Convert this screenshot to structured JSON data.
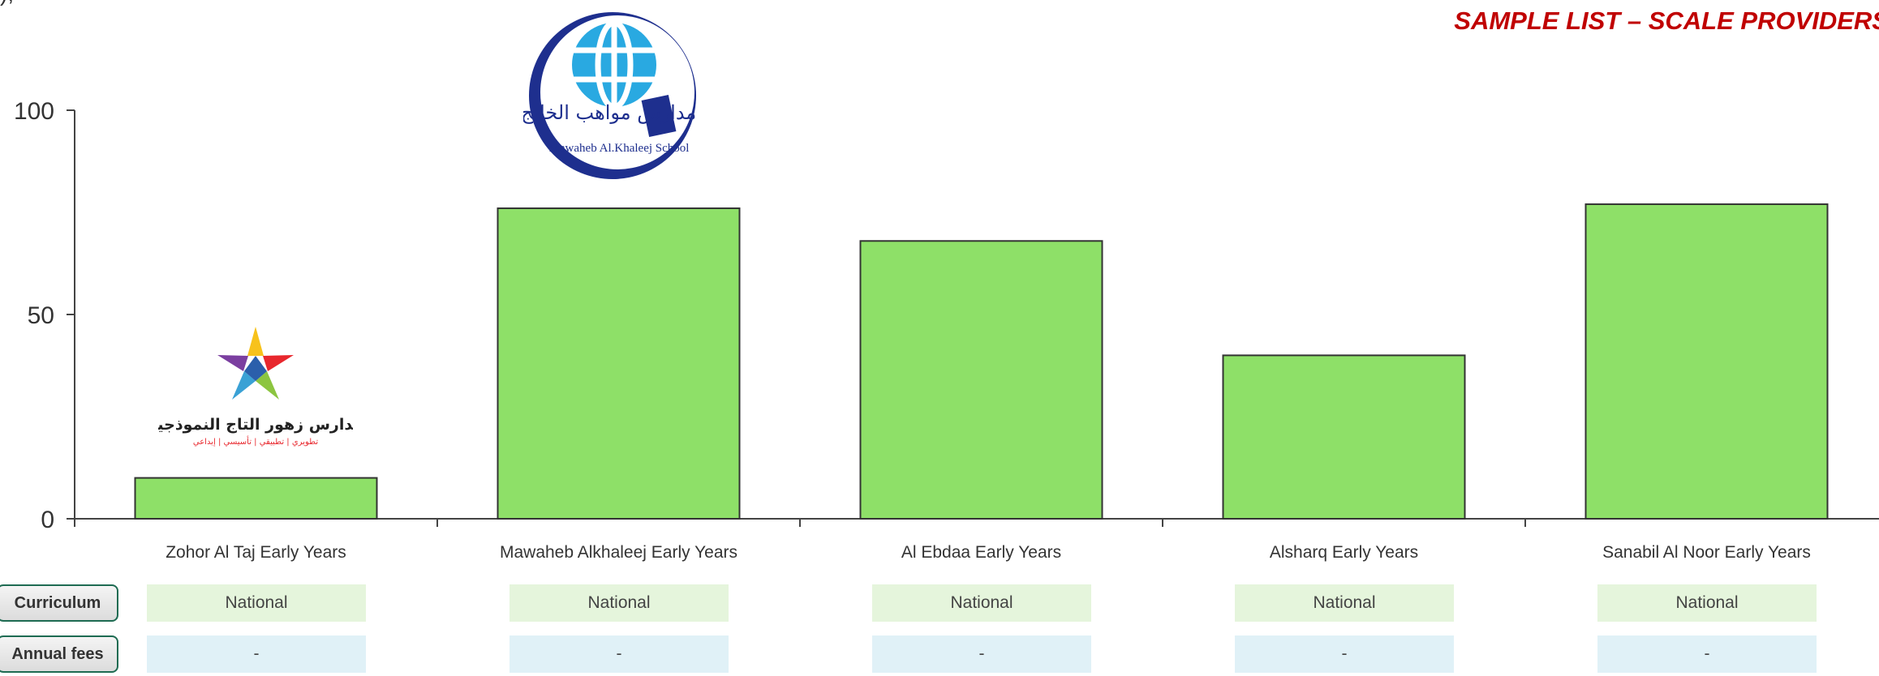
{
  "header": {
    "title": "SAMPLE LIST – SCALE PROVIDERS",
    "clipped_text": "),"
  },
  "logos": [
    {
      "name": "Zohor Al Taj logo",
      "arabic_name": "مدارس زهور التاج النموذجية",
      "arabic_sub": "تطويري | تطبيقي | تأسيسي | إبداعي",
      "colors": [
        "#7b3fa0",
        "#f7c21c",
        "#e8272d",
        "#3aa1d5",
        "#8cc540",
        "#2b5fab"
      ]
    },
    {
      "name": "Mawaheb Al Khaleej logo",
      "arabic_name": "مدارس مواهب الخليج",
      "english_name": "Mawaheb Al.Khaleej School",
      "colors": [
        "#1e2f8e",
        "#29a9e1"
      ]
    }
  ],
  "chart_data": {
    "type": "bar",
    "categories": [
      "Zohor Al Taj Early Years",
      "Mawaheb Alkhaleej Early Years",
      "Al Ebdaa Early Years",
      "Alsharq Early Years",
      "Sanabil Al Noor Early Years"
    ],
    "values": [
      10,
      76,
      68,
      40,
      77
    ],
    "ylim": [
      0,
      100
    ],
    "yticks": [
      0,
      50,
      100
    ],
    "title": "",
    "xlabel": "",
    "ylabel": "",
    "bar_color": "#8ee068",
    "bar_stroke": "#333333",
    "grid": false
  },
  "table": {
    "rows": [
      {
        "label": "Curriculum",
        "values": [
          "National",
          "National",
          "National",
          "National",
          "National"
        ]
      },
      {
        "label": "Annual fees",
        "values": [
          "-",
          "-",
          "-",
          "-",
          "-"
        ]
      }
    ]
  }
}
